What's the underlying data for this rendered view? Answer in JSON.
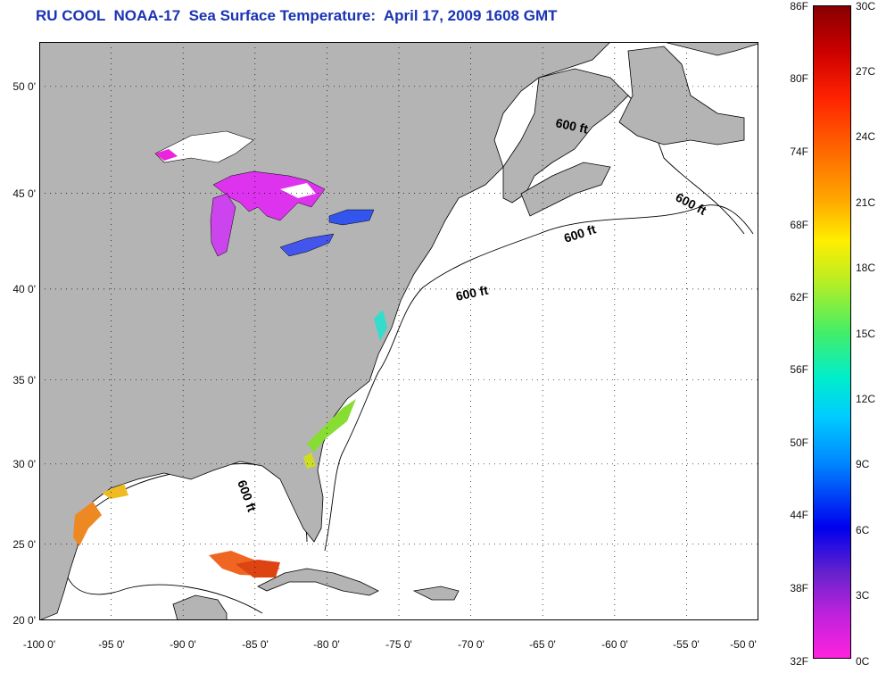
{
  "title": "RU COOL  NOAA-17  Sea Surface Temperature:  April 17, 2009 1608 GMT",
  "map": {
    "lat_labels": [
      "50 0'",
      "45 0'",
      "40 0'",
      "35 0'",
      "30 0'",
      "25 0'",
      "20 0'"
    ],
    "lat_values": [
      50,
      45,
      40,
      35,
      30,
      25,
      20
    ],
    "lon_labels": [
      "-100 0'",
      "-95 0'",
      "-90 0'",
      "-85 0'",
      "-80 0'",
      "-75 0'",
      "-70 0'",
      "-65 0'",
      "-60 0'",
      "-55 0'",
      "-50 0'"
    ],
    "lon_values": [
      -100,
      -95,
      -90,
      -85,
      -80,
      -75,
      -70,
      -65,
      -60,
      -55,
      -50
    ],
    "lat_range": [
      20,
      52.5
    ],
    "lon_range": [
      -100,
      -50
    ],
    "contour_label": "600 ft",
    "land_color": "#b4b4b4",
    "ocean_color": "#ffffff"
  },
  "colorbar": {
    "fahrenheit_labels": [
      "86F",
      "80F",
      "74F",
      "68F",
      "62F",
      "56F",
      "50F",
      "44F",
      "38F",
      "32F"
    ],
    "celsius_labels": [
      "30C",
      "27C",
      "24C",
      "21C",
      "18C",
      "15C",
      "12C",
      "9C",
      "6C",
      "3C",
      "0C"
    ]
  }
}
